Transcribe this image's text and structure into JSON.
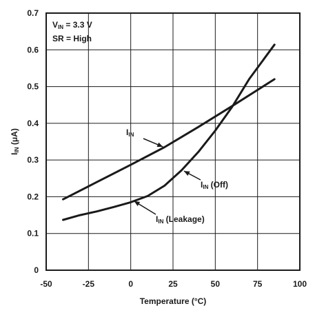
{
  "chart_data": {
    "type": "line",
    "title": "",
    "xlabel": "Temperature (°C)",
    "ylabel": {
      "main": "I",
      "sub": "IN",
      "rest": " (μA)"
    },
    "xlim": [
      -50,
      100
    ],
    "ylim": [
      0,
      0.7
    ],
    "xticks": [
      -50,
      -25,
      0,
      25,
      50,
      75,
      100
    ],
    "yticks": [
      0,
      0.1,
      0.2,
      0.3,
      0.4,
      0.5,
      0.6,
      0.7
    ],
    "grid": true,
    "conditions": [
      {
        "main": "V",
        "sub": "IN",
        "rest": " = 3.3 V"
      },
      {
        "main": "SR = High",
        "sub": "",
        "rest": ""
      }
    ],
    "series": [
      {
        "name": {
          "main": "I",
          "sub": "IN",
          "rest": ""
        },
        "x": [
          -40,
          -20,
          0,
          20,
          40,
          60,
          85
        ],
        "y": [
          0.193,
          0.24,
          0.287,
          0.335,
          0.39,
          0.447,
          0.52
        ]
      },
      {
        "name": {
          "main": "I",
          "sub": "IN",
          "rest": " (Off)"
        },
        "x": [
          -40,
          -30,
          -20,
          -10,
          0,
          10,
          20,
          30,
          40,
          50,
          60,
          70,
          85
        ],
        "y": [
          0.137,
          0.15,
          0.16,
          0.172,
          0.185,
          0.202,
          0.23,
          0.272,
          0.322,
          0.38,
          0.445,
          0.52,
          0.614
        ]
      }
    ],
    "annotations": [
      {
        "main": "I",
        "sub": "IN",
        "rest": "",
        "arrow_to": [
          19,
          0.336
        ]
      },
      {
        "main": "I",
        "sub": "IN",
        "rest": " (Off)",
        "arrow_to": [
          31.5,
          0.27
        ]
      },
      {
        "main": "I",
        "sub": "IN",
        "rest": " (Leakage)",
        "arrow_to": [
          2,
          0.188
        ]
      }
    ]
  }
}
